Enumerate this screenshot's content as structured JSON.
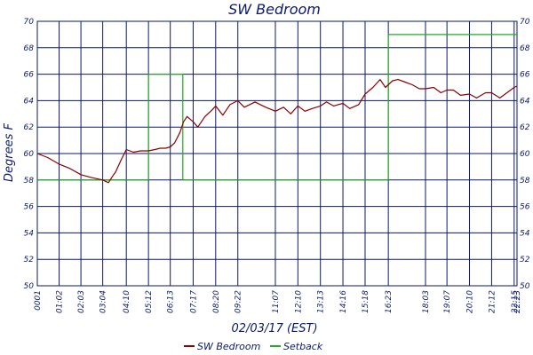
{
  "chart_data": {
    "type": "line",
    "title": "SW Bedroom",
    "xlabel": "02/03/17 (EST)",
    "ylabel": "Degrees F",
    "ylim": [
      50,
      70
    ],
    "yticks": [
      50,
      52,
      54,
      56,
      58,
      60,
      62,
      64,
      66,
      68,
      70
    ],
    "x_range_minutes": [
      1,
      1343
    ],
    "xticks": [
      {
        "minute": 1,
        "label": "0001"
      },
      {
        "minute": 62,
        "label": "01:02"
      },
      {
        "minute": 123,
        "label": "02:03"
      },
      {
        "minute": 184,
        "label": "03:04"
      },
      {
        "minute": 250,
        "label": "04:10"
      },
      {
        "minute": 312,
        "label": "05:12"
      },
      {
        "minute": 373,
        "label": "06:13"
      },
      {
        "minute": 437,
        "label": "07:17"
      },
      {
        "minute": 500,
        "label": "08:20"
      },
      {
        "minute": 562,
        "label": "09:22"
      },
      {
        "minute": 667,
        "label": "11:07"
      },
      {
        "minute": 730,
        "label": "12:10"
      },
      {
        "minute": 793,
        "label": "13:13"
      },
      {
        "minute": 856,
        "label": "14:16"
      },
      {
        "minute": 918,
        "label": "15:18"
      },
      {
        "minute": 983,
        "label": "16:23"
      },
      {
        "minute": 1087,
        "label": "18:03"
      },
      {
        "minute": 1147,
        "label": "19:07"
      },
      {
        "minute": 1210,
        "label": "20:10"
      },
      {
        "minute": 1272,
        "label": "21:12"
      },
      {
        "minute": 1335,
        "label": "22:15"
      },
      {
        "minute": 1343,
        "label": "22:23"
      }
    ],
    "grid": true,
    "legend_position": "bottom",
    "series": [
      {
        "name": "SW Bedroom",
        "color": "#8b0000",
        "x": [
          1,
          30,
          62,
          90,
          123,
          150,
          184,
          200,
          212,
          220,
          235,
          250,
          270,
          290,
          312,
          330,
          345,
          360,
          373,
          385,
          400,
          410,
          420,
          437,
          450,
          470,
          490,
          500,
          520,
          540,
          562,
          580,
          610,
          640,
          667,
          690,
          710,
          730,
          750,
          770,
          793,
          810,
          830,
          856,
          875,
          900,
          918,
          940,
          960,
          975,
          983,
          995,
          1010,
          1030,
          1050,
          1070,
          1087,
          1110,
          1130,
          1147,
          1165,
          1185,
          1210,
          1230,
          1255,
          1272,
          1295,
          1315,
          1335,
          1343
        ],
        "y": [
          60.0,
          59.7,
          59.2,
          58.9,
          58.4,
          58.2,
          58.0,
          57.8,
          58.3,
          58.6,
          59.5,
          60.3,
          60.1,
          60.2,
          60.2,
          60.3,
          60.4,
          60.4,
          60.5,
          60.8,
          61.6,
          62.4,
          62.8,
          62.4,
          62.0,
          62.8,
          63.3,
          63.6,
          62.9,
          63.7,
          64.0,
          63.5,
          63.9,
          63.5,
          63.2,
          63.5,
          63.0,
          63.6,
          63.2,
          63.4,
          63.6,
          63.9,
          63.6,
          63.8,
          63.4,
          63.7,
          64.5,
          65.0,
          65.6,
          65.0,
          65.2,
          65.5,
          65.6,
          65.4,
          65.2,
          64.9,
          64.9,
          65.0,
          64.6,
          64.8,
          64.8,
          64.4,
          64.5,
          64.2,
          64.6,
          64.6,
          64.2,
          64.6,
          65.0,
          65.1
        ]
      },
      {
        "name": "Setback",
        "color": "#22aa22",
        "x": [
          1,
          312,
          312,
          408,
          408,
          983,
          983,
          1343
        ],
        "y": [
          58,
          58,
          66,
          66,
          58,
          58,
          69,
          69
        ]
      }
    ]
  }
}
